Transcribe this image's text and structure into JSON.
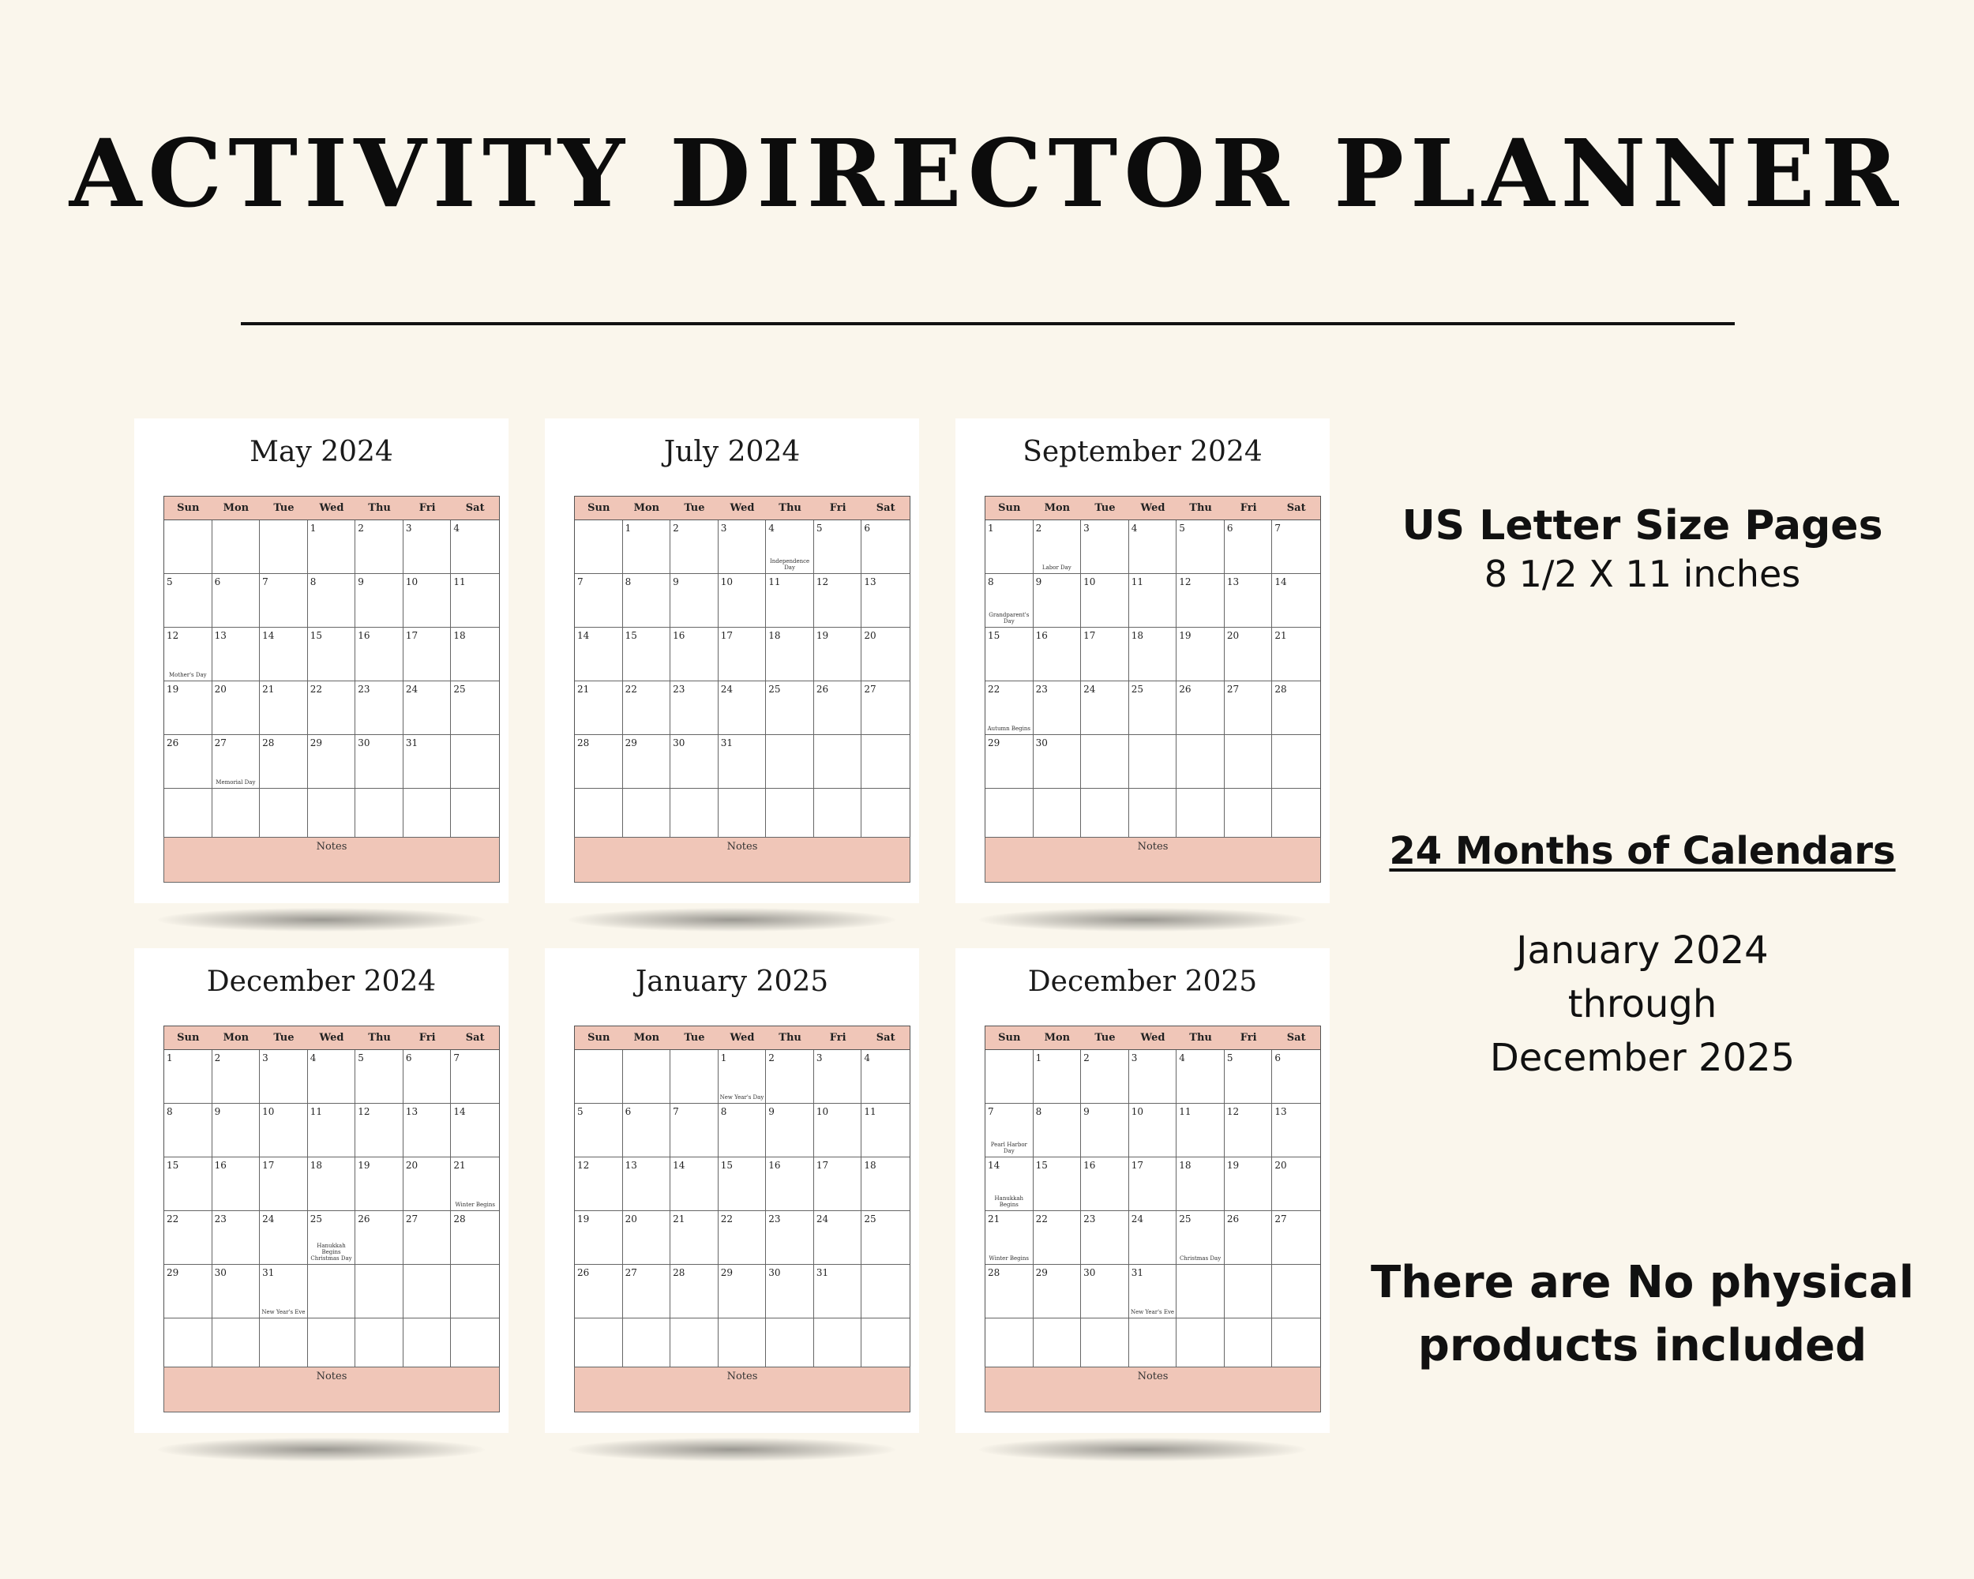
{
  "title": "ACTIVITY DIRECTOR PLANNER",
  "weekdays": [
    "Sun",
    "Mon",
    "Tue",
    "Wed",
    "Thu",
    "Fri",
    "Sat"
  ],
  "notes_label": "Notes",
  "accent_color": "#f0c6b8",
  "calendars": [
    {
      "month": "May 2024",
      "start": 3,
      "days": 31,
      "holidays": {
        "12": "Mother's Day",
        "27": "Memorial Day"
      }
    },
    {
      "month": "July 2024",
      "start": 1,
      "days": 31,
      "holidays": {
        "4": "Independence Day"
      }
    },
    {
      "month": "September 2024",
      "start": 0,
      "days": 30,
      "holidays": {
        "2": "Labor Day",
        "8": "Grandparent's Day",
        "22": "Autumn Begins"
      }
    },
    {
      "month": "December 2024",
      "start": 0,
      "days": 31,
      "holidays": {
        "21": "Winter Begins",
        "25": "Hanukkah Begins Christmas Day",
        "31": "New Year's Eve"
      }
    },
    {
      "month": "January 2025",
      "start": 3,
      "days": 31,
      "holidays": {
        "1": "New Year's Day"
      }
    },
    {
      "month": "December 2025",
      "start": 1,
      "days": 31,
      "holidays": {
        "7": "Pearl Harbor Day",
        "14": "Hanukkah Begins",
        "21": "Winter Begins",
        "25": "Christmas Day",
        "31": "New Year's Eve"
      }
    }
  ],
  "side": {
    "size_heading": "US Letter Size Pages",
    "size_detail": "8 1/2 X 11 inches",
    "months_heading": "24 Months of Calendars",
    "range_line1": "January 2024",
    "range_line2": "through",
    "range_line3": "December 2025",
    "disclaimer_line1": "There are No physical",
    "disclaimer_line2": "products included"
  }
}
